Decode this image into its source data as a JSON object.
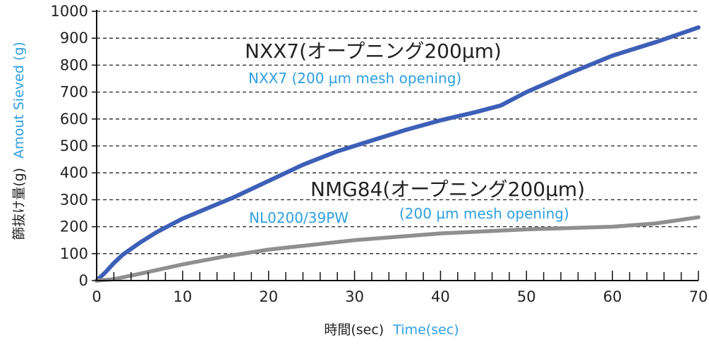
{
  "colors": {
    "accent_blue_text": "#2f9fe0",
    "nxx7_line": "#3d5fb7",
    "nmg84_line": "#8f8f8f",
    "grid": "#222222",
    "axis": "#111111",
    "text": "#222222"
  },
  "chart_data": {
    "type": "line",
    "grid": "horizontal dashed",
    "xlim": [
      0,
      70
    ],
    "ylim": [
      0,
      1000
    ],
    "x_ticks": [
      0,
      10,
      20,
      30,
      40,
      50,
      60,
      70
    ],
    "y_ticks": [
      0,
      100,
      200,
      300,
      400,
      500,
      600,
      700,
      800,
      900,
      1000
    ],
    "x_tick_labels": [
      "0",
      "10",
      "20",
      "30",
      "40",
      "50",
      "60",
      "70"
    ],
    "y_tick_labels": [
      "0",
      "100",
      "200",
      "300",
      "400",
      "500",
      "600",
      "700",
      "800",
      "900",
      "1000"
    ],
    "xlabel_jp": "時間(sec)",
    "xlabel_en": "Time(sec)",
    "ylabel_jp": "篩抜け量(g)",
    "ylabel_en": "Amout Sieved (g)",
    "annotations": {
      "nxx7_jp": "NXX7(オープニング200µm)",
      "nxx7_en": "NXX7  (200 µm mesh opening)",
      "nmg84_jp": "NMG84(オープニング200µm)",
      "nmg84_en_left": "NL0200/39PW",
      "nmg84_en_right": "(200 µm mesh opening)"
    },
    "series": [
      {
        "color": "#3d5fb7",
        "x": [
          0,
          1,
          2,
          3,
          5,
          7,
          10,
          13,
          16,
          20,
          24,
          28,
          32,
          36,
          40,
          44,
          47,
          50,
          55,
          60,
          65,
          70
        ],
        "y": [
          0,
          30,
          65,
          95,
          140,
          180,
          230,
          270,
          310,
          370,
          430,
          480,
          520,
          560,
          595,
          625,
          650,
          700,
          770,
          835,
          885,
          940
        ]
      },
      {
        "color": "#8f8f8f",
        "x": [
          0,
          2,
          5,
          10,
          15,
          20,
          30,
          40,
          50,
          60,
          65,
          70
        ],
        "y": [
          0,
          5,
          25,
          60,
          90,
          115,
          150,
          175,
          190,
          200,
          212,
          235
        ]
      }
    ]
  }
}
